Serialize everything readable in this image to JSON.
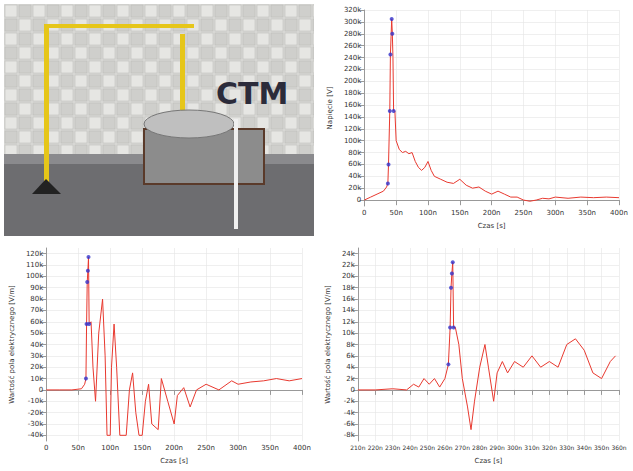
{
  "photo": {
    "text": "CTM"
  },
  "chart_data": [
    {
      "type": "line",
      "x_label": "Czas [s]",
      "y_label": "Napięcie [V]",
      "xlim": [
        0,
        4e-07
      ],
      "xticks": [
        0,
        {
          "value": 5e-08,
          "label": "50n"
        },
        {
          "value": 1e-07,
          "label": "100n"
        },
        {
          "value": 1.5e-07,
          "label": "150n"
        },
        {
          "value": 2e-07,
          "label": "200n"
        },
        {
          "value": 2.5e-07,
          "label": "250n"
        },
        {
          "value": 3e-07,
          "label": "300n"
        },
        {
          "value": 3.5e-07,
          "label": "350n"
        },
        {
          "value": 4e-07,
          "label": "400n"
        }
      ],
      "ylim": [
        -10000,
        320000
      ],
      "yticks": [
        0,
        {
          "value": 20000,
          "label": "20k"
        },
        {
          "value": 40000,
          "label": "40k"
        },
        {
          "value": 60000,
          "label": "60k"
        },
        {
          "value": 80000,
          "label": "80k"
        },
        {
          "value": 100000,
          "label": "100k"
        },
        {
          "value": 120000,
          "label": "120k"
        },
        {
          "value": 140000,
          "label": "140k"
        },
        {
          "value": 160000,
          "label": "160k"
        },
        {
          "value": 180000,
          "label": "180k"
        },
        {
          "value": 200000,
          "label": "200k"
        },
        {
          "value": 220000,
          "label": "220k"
        },
        {
          "value": 240000,
          "label": "240k"
        },
        {
          "value": 260000,
          "label": "260k"
        },
        {
          "value": 280000,
          "label": "280k"
        },
        {
          "value": 300000,
          "label": "300k"
        },
        {
          "value": 320000,
          "label": "320k"
        }
      ],
      "grid": true,
      "series": [
        {
          "type": "line",
          "color": "#e8392f",
          "x": [
            0,
            1e-08,
            2e-08,
            3e-08,
            3.5e-08,
            3.7e-08,
            3.8e-08,
            4e-08,
            4.1e-08,
            4.2e-08,
            4.3e-08,
            4.4e-08,
            4.5e-08,
            4.6e-08,
            4.8e-08,
            5e-08,
            5.5e-08,
            6e-08,
            6.5e-08,
            7e-08,
            7.5e-08,
            8e-08,
            8.5e-08,
            9e-08,
            9.5e-08,
            1e-07,
            1.05e-07,
            1.1e-07,
            1.2e-07,
            1.3e-07,
            1.4e-07,
            1.5e-07,
            1.6e-07,
            1.7e-07,
            1.8e-07,
            1.9e-07,
            2e-07,
            2.1e-07,
            2.2e-07,
            2.3e-07,
            2.4e-07,
            2.5e-07,
            2.6e-07,
            2.7e-07,
            2.8e-07,
            2.9e-07,
            3e-07,
            3.2e-07,
            3.4e-07,
            3.6e-07,
            3.8e-07,
            4e-07
          ],
          "values": [
            0,
            5000,
            10000,
            15000,
            22000,
            28000,
            60000,
            150000,
            245000,
            275000,
            305000,
            280000,
            240000,
            150000,
            150000,
            100000,
            85000,
            80000,
            82000,
            78000,
            80000,
            65000,
            55000,
            50000,
            55000,
            65000,
            50000,
            40000,
            35000,
            30000,
            28000,
            35000,
            25000,
            20000,
            22000,
            15000,
            10000,
            15000,
            10000,
            5000,
            5000,
            0,
            -2000,
            0,
            3000,
            2000,
            5000,
            3000,
            5000,
            4000,
            5000,
            4000
          ]
        },
        {
          "type": "scatter",
          "color": "#3333cc",
          "marker": "circle",
          "x": [
            3.7e-08,
            3.8e-08,
            4e-08,
            4.1e-08,
            4.3e-08,
            4.4e-08,
            4.6e-08
          ],
          "values": [
            28000,
            60000,
            150000,
            245000,
            305000,
            280000,
            150000
          ]
        }
      ]
    },
    {
      "type": "line",
      "x_label": "Czas [s]",
      "y_label": "Wartość pola elektrycznego [V/m]",
      "xlim": [
        0,
        4e-07
      ],
      "xticks": [
        0,
        {
          "value": 5e-08,
          "label": "50n"
        },
        {
          "value": 1e-07,
          "label": "100n"
        },
        {
          "value": 1.5e-07,
          "label": "150n"
        },
        {
          "value": 2e-07,
          "label": "200n"
        },
        {
          "value": 2.5e-07,
          "label": "250n"
        },
        {
          "value": 3e-07,
          "label": "300n"
        },
        {
          "value": 3.5e-07,
          "label": "350n"
        },
        {
          "value": 4e-07,
          "label": "400n"
        }
      ],
      "ylim": [
        -45000,
        125000
      ],
      "yticks": [
        {
          "value": -40000,
          "label": "-40k"
        },
        {
          "value": -30000,
          "label": "-30k"
        },
        {
          "value": -20000,
          "label": "-20k"
        },
        {
          "value": -10000,
          "label": "-10k"
        },
        0,
        {
          "value": 10000,
          "label": "10k"
        },
        {
          "value": 20000,
          "label": "20k"
        },
        {
          "value": 30000,
          "label": "30k"
        },
        {
          "value": 40000,
          "label": "40k"
        },
        {
          "value": 50000,
          "label": "50k"
        },
        {
          "value": 60000,
          "label": "60k"
        },
        {
          "value": 70000,
          "label": "70k"
        },
        {
          "value": 80000,
          "label": "80k"
        },
        {
          "value": 90000,
          "label": "90k"
        },
        {
          "value": 100000,
          "label": "100k"
        },
        {
          "value": 110000,
          "label": "110k"
        },
        {
          "value": 120000,
          "label": "120k"
        }
      ],
      "grid": true,
      "series": [
        {
          "type": "line",
          "color": "#e8392f",
          "x": [
            0,
            2e-08,
            4e-08,
            5.5e-08,
            6e-08,
            6.2e-08,
            6.3e-08,
            6.4e-08,
            6.5e-08,
            6.6e-08,
            6.7e-08,
            7e-08,
            7.3e-08,
            7.7e-08,
            8.2e-08,
            8.8e-08,
            9.2e-08,
            9.5e-08,
            1e-07,
            1.02e-07,
            1.06e-07,
            1.1e-07,
            1.15e-07,
            1.25e-07,
            1.3e-07,
            1.35e-07,
            1.4e-07,
            1.45e-07,
            1.5e-07,
            1.55e-07,
            1.6e-07,
            1.65e-07,
            1.75e-07,
            1.8e-07,
            1.9e-07,
            2e-07,
            2.05e-07,
            2.15e-07,
            2.25e-07,
            2.35e-07,
            2.5e-07,
            2.7e-07,
            2.9e-07,
            3e-07,
            3.2e-07,
            3.4e-07,
            3.6e-07,
            3.8e-07,
            4e-07
          ],
          "values": [
            0,
            0,
            0,
            1000,
            5000,
            10000,
            58000,
            95000,
            105000,
            117000,
            58000,
            60000,
            20000,
            -10000,
            50000,
            80000,
            30000,
            -40000,
            -40000,
            20000,
            58000,
            20000,
            -40000,
            -40000,
            0,
            15000,
            -20000,
            -40000,
            -40000,
            -10000,
            5000,
            -30000,
            -35000,
            10000,
            -10000,
            -30000,
            -5000,
            2000,
            -15000,
            0,
            5000,
            0,
            8000,
            5000,
            7000,
            8000,
            10000,
            8000,
            10000
          ]
        },
        {
          "type": "scatter",
          "color": "#3333cc",
          "marker": "circle",
          "x": [
            6.2e-08,
            6.3e-08,
            6.4e-08,
            6.5e-08,
            6.6e-08,
            6.7e-08
          ],
          "values": [
            10000,
            58000,
            95000,
            105000,
            117000,
            58000
          ]
        }
      ]
    },
    {
      "type": "line",
      "x_label": "Czas [s]",
      "y_label": "Wartość pola elektrycznego [V/m]",
      "xlim": [
        2.1e-07,
        3.6e-07
      ],
      "xticks": [
        {
          "value": 2.1e-07,
          "label": "210n"
        },
        {
          "value": 2.2e-07,
          "label": "220n"
        },
        {
          "value": 2.3e-07,
          "label": "230n"
        },
        {
          "value": 2.4e-07,
          "label": "240n"
        },
        {
          "value": 2.5e-07,
          "label": "250n"
        },
        {
          "value": 2.6e-07,
          "label": "260n"
        },
        {
          "value": 2.7e-07,
          "label": "270n"
        },
        {
          "value": 2.8e-07,
          "label": "280n"
        },
        {
          "value": 2.9e-07,
          "label": "290n"
        },
        {
          "value": 3e-07,
          "label": "300n"
        },
        {
          "value": 3.1e-07,
          "label": "310n"
        },
        {
          "value": 3.2e-07,
          "label": "320n"
        },
        {
          "value": 3.3e-07,
          "label": "330n"
        },
        {
          "value": 3.4e-07,
          "label": "340n"
        },
        {
          "value": 3.5e-07,
          "label": "350n"
        },
        {
          "value": 3.6e-07,
          "label": "360n"
        }
      ],
      "ylim": [
        -9000,
        25000
      ],
      "yticks": [
        {
          "value": -8000,
          "label": "-8k"
        },
        {
          "value": -6000,
          "label": "-6k"
        },
        {
          "value": -4000,
          "label": "-4k"
        },
        {
          "value": -2000,
          "label": "-2k"
        },
        0,
        {
          "value": 2000,
          "label": "2k"
        },
        {
          "value": 4000,
          "label": "4k"
        },
        {
          "value": 6000,
          "label": "6k"
        },
        {
          "value": 8000,
          "label": "8k"
        },
        {
          "value": 10000,
          "label": "10k"
        },
        {
          "value": 12000,
          "label": "12k"
        },
        {
          "value": 14000,
          "label": "14k"
        },
        {
          "value": 16000,
          "label": "16k"
        },
        {
          "value": 18000,
          "label": "18k"
        },
        {
          "value": 20000,
          "label": "20k"
        },
        {
          "value": 22000,
          "label": "22k"
        },
        {
          "value": 24000,
          "label": "24k"
        }
      ],
      "grid": true,
      "vertical_line": 2.4e-07,
      "series": [
        {
          "type": "line",
          "color": "#e8392f",
          "x": [
            2.1e-07,
            2.2e-07,
            2.3e-07,
            2.38e-07,
            2.42e-07,
            2.45e-07,
            2.48e-07,
            2.51e-07,
            2.54e-07,
            2.57e-07,
            2.6e-07,
            2.62e-07,
            2.63e-07,
            2.635e-07,
            2.64e-07,
            2.645e-07,
            2.65e-07,
            2.66e-07,
            2.68e-07,
            2.7e-07,
            2.73e-07,
            2.75e-07,
            2.77e-07,
            2.8e-07,
            2.83e-07,
            2.85e-07,
            2.88e-07,
            2.9e-07,
            2.93e-07,
            2.96e-07,
            3e-07,
            3.05e-07,
            3.1e-07,
            3.15e-07,
            3.2e-07,
            3.25e-07,
            3.3e-07,
            3.35e-07,
            3.4e-07,
            3.45e-07,
            3.5e-07,
            3.55e-07,
            3.58e-07
          ],
          "values": [
            0,
            0,
            200,
            0,
            1000,
            500,
            2000,
            1000,
            2000,
            500,
            2000,
            4500,
            11000,
            18000,
            20500,
            22500,
            11000,
            11000,
            8000,
            2000,
            -3000,
            -7000,
            -2000,
            4000,
            8000,
            4000,
            -2000,
            3000,
            5000,
            3000,
            5000,
            4000,
            6000,
            4000,
            5000,
            4000,
            8000,
            9000,
            7000,
            3000,
            2000,
            5000,
            6000
          ]
        },
        {
          "type": "scatter",
          "color": "#3333cc",
          "marker": "circle",
          "x": [
            2.62e-07,
            2.63e-07,
            2.635e-07,
            2.64e-07,
            2.645e-07,
            2.65e-07
          ],
          "values": [
            4500,
            11000,
            18000,
            20500,
            22500,
            11000
          ]
        }
      ]
    }
  ]
}
